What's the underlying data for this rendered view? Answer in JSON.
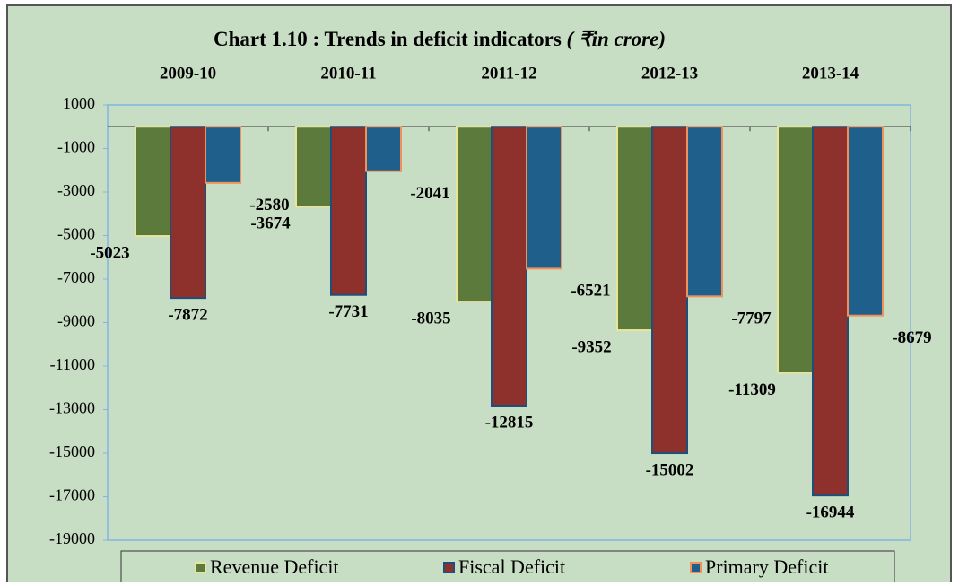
{
  "chart_data": {
    "type": "bar",
    "title": "Chart 1.10 : Trends in deficit indicators",
    "unit": "( ₹in crore)",
    "categories": [
      "2009-10",
      "2010-11",
      "2011-12",
      "2012-13",
      "2013-14"
    ],
    "series": [
      {
        "name": "Revenue Deficit",
        "color": "#5b7a3c",
        "border": "#e8e49a",
        "values": [
          -5023,
          -3674,
          -8035,
          -9352,
          -11309
        ]
      },
      {
        "name": "Fiscal Deficit",
        "color": "#8e302b",
        "border": "#1d4f7a",
        "values": [
          -7872,
          -7731,
          -12815,
          -15002,
          -16944
        ]
      },
      {
        "name": "Primary Deficit",
        "color": "#1f5f8c",
        "border": "#f0905a",
        "values": [
          -2580,
          -2041,
          -6521,
          -7797,
          -8679
        ]
      }
    ],
    "ylim": [
      -19000,
      1000
    ],
    "yticks": [
      1000,
      -1000,
      -3000,
      -5000,
      -7000,
      -9000,
      -11000,
      -13000,
      -15000,
      -17000,
      -19000
    ]
  }
}
